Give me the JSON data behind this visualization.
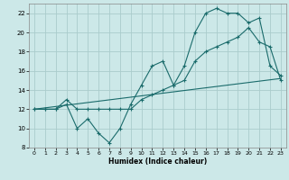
{
  "xlabel": "Humidex (Indice chaleur)",
  "bg_color": "#cce8e8",
  "grid_color": "#aacccc",
  "line_color": "#1a6b6b",
  "xlim": [
    -0.5,
    23.5
  ],
  "ylim": [
    8,
    23
  ],
  "xticks": [
    0,
    1,
    2,
    3,
    4,
    5,
    6,
    7,
    8,
    9,
    10,
    11,
    12,
    13,
    14,
    15,
    16,
    17,
    18,
    19,
    20,
    21,
    22,
    23
  ],
  "yticks": [
    8,
    10,
    12,
    14,
    16,
    18,
    20,
    22
  ],
  "line1_x": [
    0,
    1,
    2,
    3,
    4,
    5,
    6,
    7,
    8,
    9,
    10,
    11,
    12,
    13,
    14,
    15,
    16,
    17,
    18,
    19,
    20,
    21,
    22,
    23
  ],
  "line1_y": [
    12,
    12,
    12,
    12.5,
    10,
    11,
    9.5,
    8.5,
    10,
    12.5,
    14.5,
    16.5,
    17,
    14.5,
    16.5,
    20,
    22,
    22.5,
    22,
    22,
    21,
    21.5,
    16.5,
    15.5
  ],
  "line2_x": [
    0,
    1,
    2,
    3,
    4,
    5,
    6,
    7,
    8,
    9,
    10,
    11,
    12,
    13,
    14,
    15,
    16,
    17,
    18,
    19,
    20,
    21,
    22,
    23
  ],
  "line2_y": [
    12,
    12,
    12,
    13,
    12,
    12,
    12,
    12,
    12,
    12,
    13,
    13.5,
    14,
    14.5,
    15,
    17,
    18,
    18.5,
    19,
    19.5,
    20.5,
    19,
    18.5,
    15
  ],
  "line3_x": [
    0,
    23
  ],
  "line3_y": [
    12,
    15.2
  ]
}
